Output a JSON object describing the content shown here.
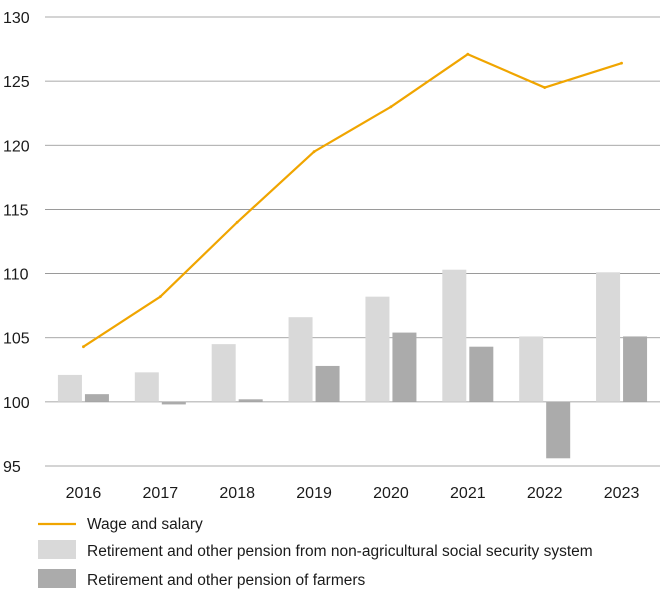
{
  "chart_data": {
    "type": "bar",
    "categories": [
      "2016",
      "2017",
      "2018",
      "2019",
      "2020",
      "2021",
      "2022",
      "2023"
    ],
    "baseline": 100,
    "ylim": [
      95,
      130
    ],
    "yticks": [
      "95",
      "100",
      "105",
      "110",
      "115",
      "120",
      "125",
      "130"
    ],
    "grid": true,
    "legend_position": "bottom",
    "series": [
      {
        "name": "Wage and salary",
        "type": "line",
        "color": "#f0a500",
        "values": [
          104.3,
          108.2,
          114.0,
          119.5,
          123.0,
          127.1,
          124.5,
          126.4
        ]
      },
      {
        "name": "Retirement and other pension from non-agricultural social security system",
        "type": "bar",
        "color": "#d9d9d9",
        "values": [
          102.1,
          102.3,
          104.5,
          106.6,
          108.2,
          110.3,
          105.1,
          110.1
        ]
      },
      {
        "name": "Retirement and other pension of farmers",
        "type": "bar",
        "color": "#ababab",
        "values": [
          100.6,
          99.8,
          100.2,
          102.8,
          105.4,
          104.3,
          95.6,
          105.1
        ]
      }
    ]
  }
}
